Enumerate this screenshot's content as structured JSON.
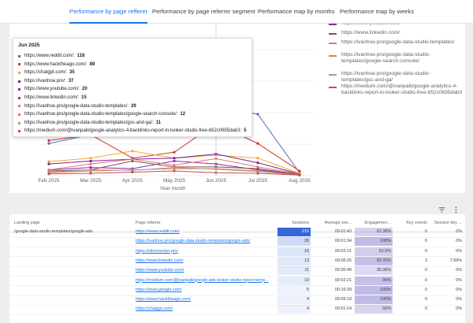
{
  "tabs": [
    {
      "label": "Performance by page refferer",
      "active": true
    },
    {
      "label": "Performance by page referrer segment",
      "active": false
    },
    {
      "label": "Performance map by months",
      "active": false
    },
    {
      "label": "Performance map by weeks",
      "active": false
    }
  ],
  "chart_data": {
    "type": "line",
    "xlabel": "Year month",
    "categories": [
      "Feb 2025",
      "Mar 2025",
      "Apr 2025",
      "May 2025",
      "Jun 2025",
      "Jul 2025",
      "Aug 2025"
    ],
    "series": [
      {
        "name": "https://www.reddit.com/",
        "color": "#5c6bc0",
        "values": [
          55,
          70,
          80,
          85,
          118,
          105,
          5
        ]
      },
      {
        "name": "https://www.hacktheago.com/",
        "color": "#d32f2f",
        "values": [
          60,
          70,
          30,
          40,
          89,
          55,
          8
        ]
      },
      {
        "name": "https://chatgpt.com/",
        "color": "#f9a825",
        "values": [
          24,
          30,
          42,
          30,
          35,
          30,
          4
        ]
      },
      {
        "name": "https://ivanhoe.pro/",
        "color": "#7b1fa2",
        "values": [
          20,
          25,
          28,
          30,
          37,
          22,
          3
        ]
      },
      {
        "name": "https://www.youtube.com/",
        "color": "#8e24aa",
        "values": [
          10,
          14,
          12,
          25,
          20,
          10,
          2
        ]
      },
      {
        "name": "https://www.linkedin.com/",
        "color": "#795548",
        "values": [
          8,
          10,
          25,
          15,
          15,
          12,
          2
        ]
      },
      {
        "name": "https://ivanhoe.pro/google-data-studio-templates/",
        "color": "#e57373",
        "values": [
          10,
          20,
          28,
          18,
          29,
          15,
          3
        ]
      },
      {
        "name": "https://ivanhoe.pro/google-data-studio-templates/google-search-console/",
        "color": "#ff7043",
        "values": [
          5,
          8,
          10,
          12,
          12,
          8,
          1
        ]
      },
      {
        "name": "https://ivanhoe.pro/google-data-studio-templates/gsc-and-ga/",
        "color": "#9e9e9e",
        "values": [
          6,
          10,
          9,
          14,
          11,
          7,
          1
        ]
      },
      {
        "name": "https://medium.com/@ivanpalii/google-analytics-4-backlinks-report-in-looker-studio-free-b52c0655dab3",
        "color": "#c0504d",
        "values": [
          3,
          4,
          6,
          8,
          5,
          4,
          1
        ]
      }
    ],
    "ylim": [
      0,
      300
    ],
    "grid": true
  },
  "legend": [
    {
      "label": "https://www.youtube.com/",
      "color": "#8e24aa"
    },
    {
      "label": "https://www.linkedin.com/",
      "color": "#795548"
    },
    {
      "label": "https://ivanhoe.pro/google-data-studio-templates/",
      "color": "#e57373"
    },
    {
      "label": "https://ivanhoe.pro/google-data-studio-templates/google-search-console/",
      "color": "#ff7043"
    },
    {
      "label": "https://ivanhoe.pro/google-data-studio-templates/gsc-and-ga/",
      "color": "#9e9e9e"
    },
    {
      "label": "https://medium.com/@ivanpalii/google-analytics-4-backlinks-report-in-looker-studio-free-b52c0655dab3",
      "color": "#c0504d"
    }
  ],
  "tooltip": {
    "title": "Jun 2025",
    "rows": [
      {
        "label": "https://www.reddit.com/:",
        "value": "118",
        "color": "#5c6bc0"
      },
      {
        "label": "https://www.hacktheago.com/:",
        "value": "89",
        "color": "#d32f2f"
      },
      {
        "label": "https://chatgpt.com/:",
        "value": "35",
        "color": "#f9a825"
      },
      {
        "label": "https://ivanhoe.pro/:",
        "value": "37",
        "color": "#7b1fa2"
      },
      {
        "label": "https://www.youtube.com/:",
        "value": "20",
        "color": "#8e24aa"
      },
      {
        "label": "https://www.linkedin.com/:",
        "value": "15",
        "color": "#795548"
      },
      {
        "label": "https://ivanhoe.pro/google-data-studio-templates/:",
        "value": "29",
        "color": "#e57373"
      },
      {
        "label": "https://ivanhoe.pro/google-data-studio-templates/google-search-console/:",
        "value": "12",
        "color": "#ff7043"
      },
      {
        "label": "https://ivanhoe.pro/google-data-studio-templates/gsc-and-ga/:",
        "value": "11",
        "color": "#9e9e9e"
      },
      {
        "label": "https://medium.com/@ivanpalii/google-analytics-4-backlinks-report-in-looker-studio-free-b52c0655dab3:",
        "value": "5",
        "color": "#c0504d"
      }
    ]
  },
  "toolbar": {
    "filter_icon": "filter-icon",
    "more_icon": "more-vert-icon"
  },
  "table": {
    "headers": [
      "Landing page",
      "Page referrer",
      "Sessions",
      "Average ses...",
      "Engagemen...",
      "Key events",
      "Session key ..."
    ],
    "max_sessions": 210,
    "rows": [
      {
        "landing": "/google-data-studio-templates/google-ads",
        "referrer": "https://www.reddit.com/",
        "sessions": "210",
        "avg": "00:01:43",
        "eng": "52.38%",
        "eng_frac": 0.52,
        "key": "0",
        "skey": "0%"
      },
      {
        "landing": "",
        "referrer": "https://ivanhoe.pro/google-data-studio-templates/google-ads/",
        "sessions": "26",
        "avg": "00:01:34",
        "eng": "100%",
        "eng_frac": 1.0,
        "key": "0",
        "skey": "0%"
      },
      {
        "landing": "",
        "referrer": "https://sitechecker.pro/",
        "sessions": "16",
        "avg": "00:02:21",
        "eng": "62.5%",
        "eng_frac": 0.625,
        "key": "0",
        "skey": "0%"
      },
      {
        "landing": "",
        "referrer": "https://www.linkedin.com/",
        "sessions": "13",
        "avg": "00:06:26",
        "eng": "92.31%",
        "eng_frac": 0.923,
        "key": "2",
        "skey": "7.69%"
      },
      {
        "landing": "",
        "referrer": "https://www.youtube.com/",
        "sessions": "11",
        "avg": "00:00:49",
        "eng": "36.36%",
        "eng_frac": 0.364,
        "key": "0",
        "skey": "0%"
      },
      {
        "landing": "",
        "referrer": "https://medium.com/@ivanpalii/google-ads-looker-studio-report-temp...",
        "sessions": "10",
        "avg": "00:02:21",
        "eng": "90%",
        "eng_frac": 0.9,
        "key": "0",
        "skey": "0%"
      },
      {
        "landing": "",
        "referrer": "https://www.google.com/",
        "sessions": "5",
        "avg": "00:16:39",
        "eng": "100%",
        "eng_frac": 1.0,
        "key": "0",
        "skey": "0%"
      },
      {
        "landing": "",
        "referrer": "https://www.hacktheago.com/",
        "sessions": "4",
        "avg": "00:05:19",
        "eng": "100%",
        "eng_frac": 1.0,
        "key": "0",
        "skey": "0%"
      },
      {
        "landing": "",
        "referrer": "https://chatgpt.com/",
        "sessions": "4",
        "avg": "00:01:14",
        "eng": "50%",
        "eng_frac": 0.5,
        "key": "0",
        "skey": "0%"
      }
    ]
  }
}
